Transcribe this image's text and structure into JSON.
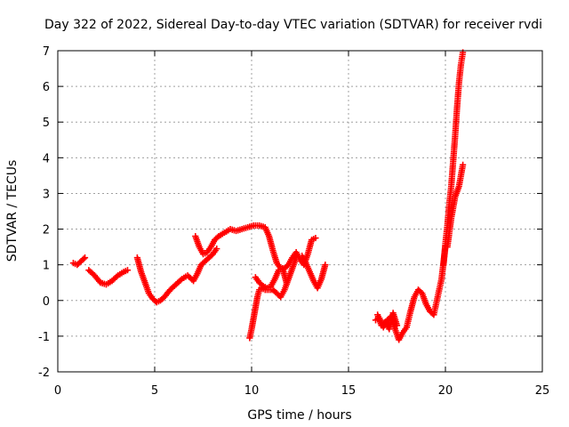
{
  "chart_data": {
    "type": "scatter",
    "title": "Day 322 of 2022, Sidereal Day-to-day VTEC variation (SDTVAR) for receiver rvdi",
    "xlabel": "GPS time / hours",
    "ylabel": "SDTVAR / TECUs",
    "xlim": [
      0,
      25
    ],
    "ylim": [
      -2,
      7
    ],
    "xticks": [
      0,
      5,
      10,
      15,
      20,
      25
    ],
    "yticks": [
      -2,
      -1,
      0,
      1,
      2,
      3,
      4,
      5,
      6,
      7
    ],
    "grid": true,
    "marker": "plus",
    "color": "#ff0000",
    "segments": [
      {
        "x": [
          0.8,
          1.0,
          1.2,
          1.4
        ],
        "y": [
          1.05,
          1.0,
          1.1,
          1.2
        ]
      },
      {
        "x": [
          1.6,
          1.9,
          2.2,
          2.5,
          2.8,
          3.1,
          3.4,
          3.6
        ],
        "y": [
          0.85,
          0.7,
          0.5,
          0.45,
          0.55,
          0.7,
          0.8,
          0.85
        ]
      },
      {
        "x": [
          4.1,
          4.3,
          4.5,
          4.7,
          4.9,
          5.1,
          5.3,
          5.5,
          5.8,
          6.1,
          6.4,
          6.7,
          7.0,
          7.2,
          7.4
        ],
        "y": [
          1.2,
          0.8,
          0.5,
          0.2,
          0.05,
          -0.05,
          0.0,
          0.1,
          0.3,
          0.45,
          0.6,
          0.7,
          0.55,
          0.75,
          1.0
        ]
      },
      {
        "x": [
          7.1,
          7.3,
          7.5,
          7.7,
          7.9,
          8.1,
          8.3,
          8.6,
          8.9,
          9.2,
          9.5,
          9.8,
          10.1,
          10.4,
          10.7,
          10.9,
          11.1,
          11.3,
          11.5,
          11.7,
          11.9,
          12.1,
          12.3,
          12.5,
          12.7,
          12.9,
          13.1,
          13.3
        ],
        "y": [
          1.8,
          1.5,
          1.3,
          1.35,
          1.5,
          1.7,
          1.8,
          1.9,
          2.0,
          1.95,
          2.0,
          2.05,
          2.1,
          2.1,
          2.05,
          1.8,
          1.4,
          1.05,
          0.9,
          0.9,
          1.0,
          1.2,
          1.35,
          1.15,
          1.0,
          1.3,
          1.7,
          1.75
        ]
      },
      {
        "x": [
          7.4,
          7.6,
          7.8,
          8.0,
          8.2
        ],
        "y": [
          1.0,
          1.1,
          1.2,
          1.3,
          1.45
        ]
      },
      {
        "x": [
          9.9,
          10.0,
          10.1,
          10.2,
          10.3,
          10.4,
          10.5,
          10.7,
          10.9,
          11.1,
          11.3,
          11.5,
          11.7,
          11.9,
          12.1,
          12.3
        ],
        "y": [
          -1.05,
          -0.8,
          -0.5,
          -0.2,
          0.1,
          0.3,
          0.35,
          0.3,
          0.3,
          0.3,
          0.2,
          0.1,
          0.3,
          0.6,
          0.9,
          1.2
        ]
      },
      {
        "x": [
          10.2,
          10.4,
          10.6,
          10.8,
          11.0,
          11.2,
          11.4,
          11.6,
          11.8
        ],
        "y": [
          0.65,
          0.5,
          0.4,
          0.35,
          0.4,
          0.6,
          0.85,
          0.9,
          0.5
        ]
      },
      {
        "x": [
          12.6,
          12.8,
          13.0,
          13.2,
          13.4,
          13.6,
          13.8
        ],
        "y": [
          1.25,
          1.05,
          0.8,
          0.55,
          0.35,
          0.6,
          1.0
        ]
      },
      {
        "x": [
          16.4,
          16.6,
          16.8,
          17.0,
          17.2,
          17.4,
          17.6,
          17.8,
          18.0,
          18.2,
          18.4,
          18.6,
          18.8,
          19.0,
          19.2,
          19.4,
          19.6,
          19.8,
          20.0
        ],
        "y": [
          -0.55,
          -0.5,
          -0.75,
          -0.55,
          -0.45,
          -0.8,
          -1.1,
          -0.9,
          -0.75,
          -0.3,
          0.1,
          0.3,
          0.2,
          -0.1,
          -0.3,
          -0.4,
          0.1,
          0.6,
          1.5
        ]
      },
      {
        "x": [
          16.5,
          16.7,
          16.9,
          17.1,
          17.3,
          17.5
        ],
        "y": [
          -0.4,
          -0.7,
          -0.6,
          -0.8,
          -0.35,
          -0.7
        ]
      },
      {
        "x": [
          19.9,
          20.0,
          20.1,
          20.2,
          20.3,
          20.4,
          20.5,
          20.6,
          20.7,
          20.8,
          20.9
        ],
        "y": [
          1.0,
          1.6,
          2.1,
          2.7,
          3.2,
          3.9,
          4.6,
          5.4,
          6.1,
          6.6,
          6.95
        ]
      },
      {
        "x": [
          20.1,
          20.3,
          20.5,
          20.7,
          20.9
        ],
        "y": [
          1.5,
          2.3,
          2.9,
          3.2,
          3.8
        ]
      }
    ]
  }
}
